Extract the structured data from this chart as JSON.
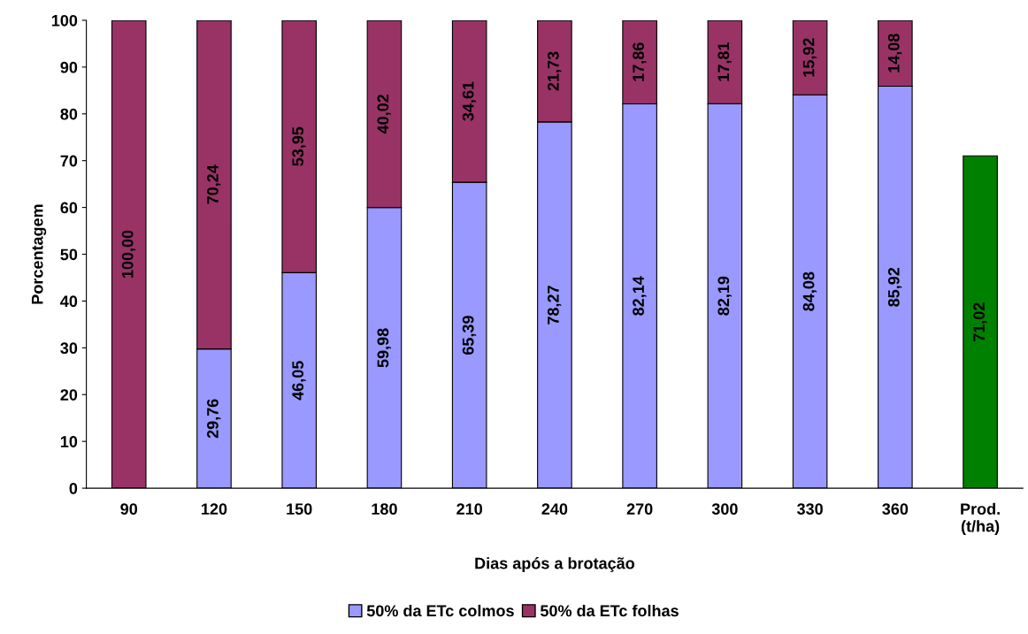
{
  "chart_data": {
    "type": "bar",
    "stacked": true,
    "xlabel": "Dias após a brotação",
    "ylabel": "Porcentagem",
    "categories": [
      "90",
      "120",
      "150",
      "180",
      "210",
      "240",
      "270",
      "300",
      "330",
      "360",
      "Prod.\n(t/ha)"
    ],
    "series": [
      {
        "name": "50% da ETc colmos",
        "color": "#9999ff",
        "values": [
          null,
          29.76,
          46.05,
          59.98,
          65.39,
          78.27,
          82.14,
          82.19,
          84.08,
          85.92,
          null
        ],
        "value_labels": [
          null,
          "29,76",
          "46,05",
          "59,98",
          "65,39",
          "78,27",
          "82,14",
          "82,19",
          "84,08",
          "85,92",
          null
        ]
      },
      {
        "name": "50% da ETc folhas",
        "color": "#993366",
        "values": [
          100.0,
          70.24,
          53.95,
          40.02,
          34.61,
          21.73,
          17.86,
          17.81,
          15.92,
          14.08,
          null
        ],
        "value_labels": [
          "100,00",
          "70,24",
          "53,95",
          "40,02",
          "34,61",
          "21,73",
          "17,86",
          "17,81",
          "15,92",
          "14,08",
          null
        ]
      },
      {
        "color": "#008000",
        "values": [
          null,
          null,
          null,
          null,
          null,
          null,
          null,
          null,
          null,
          null,
          71.02
        ],
        "value_labels": [
          null,
          null,
          null,
          null,
          null,
          null,
          null,
          null,
          null,
          null,
          "71,02"
        ]
      }
    ],
    "ylim": [
      0,
      100
    ],
    "yticks": [
      0,
      10,
      20,
      30,
      40,
      50,
      60,
      70,
      80,
      90,
      100
    ],
    "grid": false,
    "legend": "bottom"
  }
}
